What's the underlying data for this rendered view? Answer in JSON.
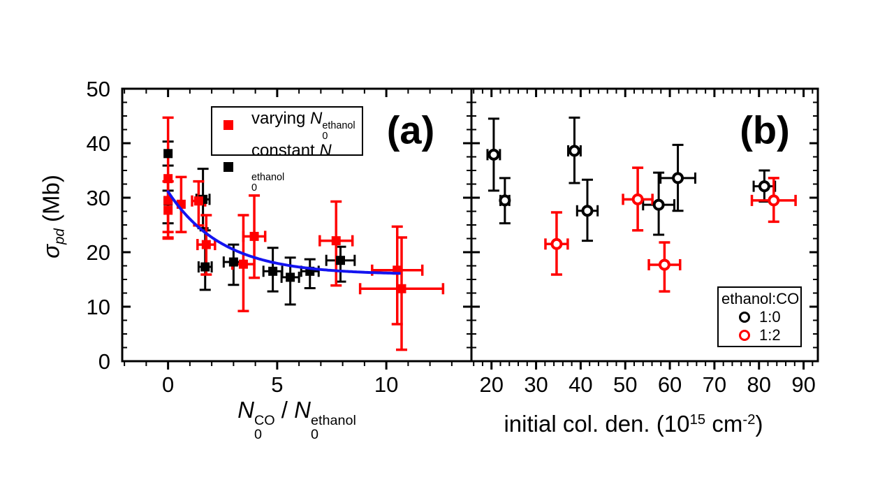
{
  "figure": {
    "background": "#ffffff",
    "panel_a_label": "(a)",
    "panel_b_label": "(b)"
  },
  "colors": {
    "red": "#ff0000",
    "black": "#000000",
    "blue": "#1414f0",
    "white": "#ffffff"
  },
  "axes": {
    "y": {
      "label_plain": "sigma_pd (Mb)",
      "label_segments": [
        {
          "text": "σ",
          "italic": true
        },
        {
          "text": "pd",
          "sub": true,
          "italic": true
        },
        {
          "text": " (Mb)"
        }
      ]
    },
    "xa": {
      "label_plain": "N0^CO / N0^ethanol",
      "label_segments": [
        {
          "text": "N",
          "italic": true
        },
        {
          "sub": "0",
          "sup": "CO"
        },
        {
          "text": " / "
        },
        {
          "text": "N",
          "italic": true
        },
        {
          "sub": "0",
          "sup": "ethanol"
        }
      ]
    },
    "xb": {
      "label_plain": "initial col. den. (10^15 cm^-2)",
      "label_segments": [
        {
          "text": "initial col. den. (10"
        },
        {
          "text": "15",
          "sup": true
        },
        {
          "text": " cm",
          "": ""
        },
        {
          "text": "-2",
          "sup": true
        },
        {
          "text": ")"
        }
      ]
    }
  },
  "legend_a": {
    "items": [
      {
        "key": "varying",
        "color": "#ff0000",
        "label_segments": [
          {
            "text": "varying "
          },
          {
            "text": "N",
            "italic": true
          },
          {
            "sub": "0",
            "sup": "ethanol"
          }
        ]
      },
      {
        "key": "constant",
        "color": "#000000",
        "label_segments": [
          {
            "text": "constant "
          },
          {
            "text": "N",
            "italic": true
          },
          {
            "sub": "0",
            "sup": "ethanol"
          }
        ]
      }
    ]
  },
  "legend_b": {
    "title": "ethanol:CO",
    "items": [
      {
        "key": "ratio-1-0",
        "color": "#000000",
        "label": "1:0"
      },
      {
        "key": "ratio-1-2",
        "color": "#ff0000",
        "label": "1:2"
      }
    ]
  },
  "chart_data": [
    {
      "panel": "a",
      "type": "scatter",
      "title": "",
      "xlabel": "N0^CO / N0^ethanol",
      "ylabel": "sigma_pd (Mb)",
      "xlim": [
        -2.1,
        13.9
      ],
      "ylim": [
        0,
        50
      ],
      "x_ticks": [
        0,
        5,
        10
      ],
      "x_minor_step": 1,
      "y_ticks": [
        0,
        10,
        20,
        30,
        40,
        50
      ],
      "y_minor_step": 2.5,
      "grid": false,
      "legend_position": "top-center-inside",
      "series": [
        {
          "key": "constant-ethanol",
          "name": "constant N0^ethanol",
          "marker": "filled-square",
          "color": "#000000",
          "errbar_width": 3,
          "points": [
            {
              "x": 0.0,
              "y": 38.1,
              "yerr_minus": 2.2,
              "yerr_plus": 2.2,
              "xerr": 0.1
            },
            {
              "x": 0.0,
              "y": 29.4,
              "yerr_minus": 4.1,
              "yerr_plus": 1.9,
              "xerr": 0.1
            },
            {
              "x": 1.6,
              "y": 29.7,
              "yerr_minus": 5.3,
              "yerr_plus": 5.6,
              "xerr": 0.3
            },
            {
              "x": 1.7,
              "y": 17.3,
              "yerr_minus": 4.2,
              "yerr_plus": 6.7,
              "xerr": 0.3
            },
            {
              "x": 3.0,
              "y": 18.2,
              "yerr_minus": 4.2,
              "yerr_plus": 3.2,
              "xerr": 0.45
            },
            {
              "x": 4.8,
              "y": 16.5,
              "yerr_minus": 3.7,
              "yerr_plus": 4.3,
              "xerr": 0.43
            },
            {
              "x": 5.6,
              "y": 15.4,
              "yerr_minus": 5.0,
              "yerr_plus": 3.6,
              "xerr": 0.4
            },
            {
              "x": 6.5,
              "y": 16.5,
              "yerr_minus": 3.1,
              "yerr_plus": 2.2,
              "xerr": 0.4
            },
            {
              "x": 7.9,
              "y": 18.5,
              "yerr_minus": 3.9,
              "yerr_plus": 2.5,
              "xerr": 0.65
            }
          ]
        },
        {
          "key": "varying-ethanol",
          "name": "varying N0^ethanol",
          "marker": "filled-square",
          "color": "#ff0000",
          "errbar_width": 3.5,
          "points": [
            {
              "x": 0.0,
              "y": 33.5,
              "yerr_minus": 11.0,
              "yerr_plus": 11.2,
              "xerr": 0.12
            },
            {
              "x": 0.0,
              "y": 29.5,
              "yerr_minus": 5.8,
              "yerr_plus": 3.5,
              "xerr": 0.12
            },
            {
              "x": 0.0,
              "y": 27.7,
              "yerr_minus": 5.0,
              "yerr_plus": 5.3,
              "xerr": 0.12
            },
            {
              "x": 0.6,
              "y": 28.8,
              "yerr_minus": 5.1,
              "yerr_plus": 5.0,
              "xerr": 0.15
            },
            {
              "x": 1.4,
              "y": 29.4,
              "yerr_minus": 4.5,
              "yerr_plus": 3.6,
              "xerr": 0.3
            },
            {
              "x": 1.75,
              "y": 21.4,
              "yerr_minus": 5.5,
              "yerr_plus": 5.4,
              "xerr": 0.4
            },
            {
              "x": 3.45,
              "y": 17.8,
              "yerr_minus": 8.6,
              "yerr_plus": 9.0,
              "xerr": 0.5
            },
            {
              "x": 3.95,
              "y": 22.9,
              "yerr_minus": 7.6,
              "yerr_plus": 7.5,
              "xerr": 0.5
            },
            {
              "x": 7.7,
              "y": 22.1,
              "yerr_minus": 8.2,
              "yerr_plus": 7.2,
              "xerr": 0.75
            },
            {
              "x": 10.5,
              "y": 16.7,
              "yerr_minus": 9.9,
              "yerr_plus": 8.0,
              "xerr": 1.15
            },
            {
              "x": 10.7,
              "y": 13.3,
              "yerr_minus": 11.2,
              "yerr_plus": 9.4,
              "xerr": 1.9
            }
          ]
        }
      ],
      "fit_curve": {
        "type": "exponential_decay",
        "description": "y = y_offset + amplitude * exp(-x / decay_constant)",
        "y_offset": 15.9,
        "amplitude": 15.2,
        "decay_constant": 2.5,
        "x_start": 0,
        "x_end": 10.6,
        "color": "#1414f0",
        "width": 4
      }
    },
    {
      "panel": "b",
      "type": "scatter",
      "title": "",
      "xlabel": "initial col. den. (10^15 cm^-2)",
      "ylabel": "sigma_pd (Mb)",
      "xlim": [
        15.5,
        93.2
      ],
      "ylim": [
        0,
        50
      ],
      "x_ticks": [
        20,
        30,
        40,
        50,
        60,
        70,
        80,
        90
      ],
      "x_minor_step": 2,
      "y_ticks": [
        0,
        10,
        20,
        30,
        40,
        50
      ],
      "y_minor_step": 2.5,
      "grid": false,
      "legend_position": "bottom-right-inside",
      "series": [
        {
          "key": "ratio-1-0",
          "name": "1:0",
          "marker": "open-circle",
          "color": "#000000",
          "errbar_width": 3,
          "points": [
            {
              "x": 20.5,
              "y": 37.9,
              "yerr_minus": 6.6,
              "yerr_plus": 6.6,
              "xerr": 1.4
            },
            {
              "x": 23.0,
              "y": 29.5,
              "yerr_minus": 4.2,
              "yerr_plus": 4.1,
              "xerr": 1.0
            },
            {
              "x": 38.6,
              "y": 38.6,
              "yerr_minus": 5.9,
              "yerr_plus": 6.1,
              "xerr": 1.4
            },
            {
              "x": 41.5,
              "y": 27.6,
              "yerr_minus": 5.5,
              "yerr_plus": 5.7,
              "xerr": 2.3
            },
            {
              "x": 57.5,
              "y": 28.7,
              "yerr_minus": 5.5,
              "yerr_plus": 5.9,
              "xerr": 3.5
            },
            {
              "x": 61.8,
              "y": 33.6,
              "yerr_minus": 6.0,
              "yerr_plus": 6.1,
              "xerr": 3.9
            },
            {
              "x": 81.2,
              "y": 32.1,
              "yerr_minus": 2.8,
              "yerr_plus": 2.9,
              "xerr": 2.4
            }
          ]
        },
        {
          "key": "ratio-1-2",
          "name": "1:2",
          "marker": "open-circle",
          "color": "#ff0000",
          "errbar_width": 3.5,
          "points": [
            {
              "x": 34.6,
              "y": 21.5,
              "yerr_minus": 5.6,
              "yerr_plus": 5.8,
              "xerr": 2.5
            },
            {
              "x": 52.8,
              "y": 29.7,
              "yerr_minus": 5.7,
              "yerr_plus": 5.8,
              "xerr": 3.3
            },
            {
              "x": 58.8,
              "y": 17.7,
              "yerr_minus": 4.9,
              "yerr_plus": 4.1,
              "xerr": 3.5
            },
            {
              "x": 83.3,
              "y": 29.5,
              "yerr_minus": 3.9,
              "yerr_plus": 4.1,
              "xerr": 4.9
            }
          ]
        }
      ]
    }
  ]
}
